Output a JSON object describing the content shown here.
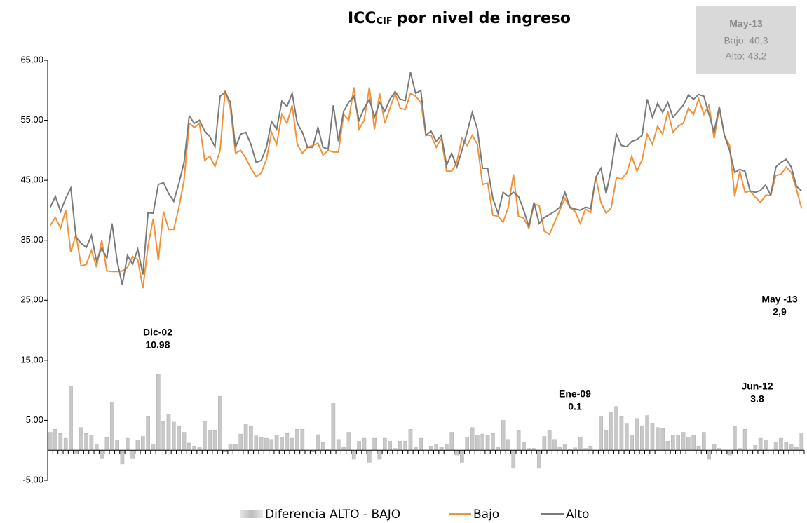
{
  "chart_data": {
    "type": "line",
    "title": "ICC",
    "title_subscript": "CIF",
    "title_rest": "por nivel de ingreso",
    "info_box": [
      "May-13",
      "Bajo: 40,3",
      "Alto: 43,2"
    ],
    "annotations": [
      [
        "Dic-02",
        "10.98"
      ],
      [
        "Ene-09",
        "0.1"
      ],
      [
        "Jun-12",
        "3.8"
      ],
      [
        "May -13",
        "2,9"
      ]
    ],
    "ylim": [
      -5,
      65
    ],
    "yticks": [
      {
        "value": -5,
        "label": "-5,00"
      },
      {
        "value": 5,
        "label": "5,00"
      },
      {
        "value": 15,
        "label": "15,00"
      },
      {
        "value": 25,
        "label": "25,00"
      },
      {
        "value": 35,
        "label": "35,00"
      },
      {
        "value": 45,
        "label": "45,00"
      },
      {
        "value": 55,
        "label": "55,00"
      },
      {
        "value": 65,
        "label": "65,00"
      }
    ],
    "grid": false,
    "legend": "bottom",
    "series": [
      {
        "name": "Diferencia ALTO - BAJO",
        "type": "bar",
        "color": "#c8c8c8",
        "values": [
          3.0,
          3.5,
          2.8,
          2.0,
          10.7,
          -0.5,
          3.8,
          2.8,
          2.5,
          1.0,
          -1.3,
          2.1,
          8.0,
          1.7,
          -2.3,
          2.0,
          -1.3,
          1.7,
          2.3,
          5.6,
          0.9,
          12.6,
          4.8,
          6.0,
          4.7,
          4.0,
          3.0,
          1.2,
          0.7,
          0.5,
          4.9,
          3.3,
          3.3,
          9.0,
          -0.3,
          1.0,
          1.0,
          2.7,
          4.3,
          4.0,
          2.4,
          2.1,
          2.0,
          1.8,
          2.5,
          2.2,
          2.8,
          2.0,
          3.5,
          3.5,
          0,
          -0.3,
          2.6,
          1.3,
          0.2,
          7.8,
          1.8,
          0.5,
          3.0,
          -1.5,
          1.5,
          2.0,
          -2.0,
          2.0,
          -1.5,
          2.0,
          1.5,
          0.3,
          1.5,
          1.5,
          3.5,
          0.5,
          2.0,
          0,
          0.7,
          1.0,
          0.5,
          1.0,
          3.0,
          -0.8,
          -2.0,
          2.2,
          3.8,
          2.5,
          2.7,
          2.5,
          2.8,
          0.5,
          5.0,
          1.8,
          -3.0,
          3.3,
          1.3,
          0.3,
          0.3,
          -3.0,
          2.3,
          3.3,
          1.8,
          0.5,
          1.0,
          0.1,
          0.4,
          2.2,
          0.3,
          0.7,
          -0.1,
          5.7,
          3.3,
          6.4,
          7.3,
          5.6,
          4.4,
          2.5,
          5.3,
          4.1,
          5.8,
          4.5,
          3.8,
          3.6,
          1.5,
          2.5,
          2.5,
          3.0,
          2.2,
          2.5,
          0.7,
          3.0,
          -1.5,
          1.0,
          0.3,
          0,
          -0.8,
          4.0,
          0.3,
          3.5,
          0,
          0.8,
          2.0,
          1.7,
          0,
          1.4,
          2.0,
          1.3,
          0.9,
          0.5,
          2.9
        ]
      },
      {
        "name": "Bajo",
        "type": "line",
        "color": "#f0923a",
        "values": [
          37.5,
          38.8,
          37,
          40,
          33,
          36,
          30.7,
          31,
          33.3,
          30.5,
          35,
          29.9,
          29.8,
          29.8,
          29.9,
          30.5,
          32.3,
          31.8,
          27,
          34,
          38.6,
          31.7,
          39.8,
          36.8,
          36.8,
          40.5,
          45,
          54.5,
          53.8,
          54.5,
          48.3,
          49,
          47.3,
          50,
          60,
          57,
          49.5,
          50,
          48.7,
          47,
          45.6,
          46.2,
          48.5,
          53,
          51,
          56,
          54.5,
          57.5,
          51,
          49.5,
          50.5,
          50.8,
          51.2,
          49.2,
          50,
          49.7,
          49.7,
          56,
          55,
          60.5,
          53.5,
          55,
          60.5,
          53.5,
          59.5,
          54.5,
          57,
          59.5,
          57,
          56.8,
          59.5,
          59,
          58,
          52.5,
          52.5,
          50.5,
          52,
          46.5,
          46.5,
          48,
          52,
          50.8,
          52.5,
          51,
          44.3,
          44.5,
          39.2,
          39,
          38,
          40.5,
          46,
          39,
          38.7,
          37,
          41,
          40.8,
          36.5,
          36,
          38,
          40,
          42,
          40.4,
          39.8,
          37.8,
          40.2,
          39.6,
          45.6,
          41.3,
          39.5,
          40.4,
          45.4,
          45.2,
          46.2,
          49,
          46.5,
          48.4,
          52.7,
          51,
          54,
          52.7,
          56.5,
          53,
          54,
          54.5,
          57,
          56,
          58.6,
          56,
          57.5,
          52,
          57,
          52.5,
          50.8,
          42.3,
          46.5,
          43,
          43.2,
          42.2,
          41.3,
          42.5,
          42.5,
          45.8,
          46,
          47.2,
          46.3,
          43.5,
          40.3
        ]
      },
      {
        "name": "Alto",
        "type": "line",
        "color": "#7a7a7a",
        "values": [
          40.5,
          42.3,
          39.8,
          42,
          43.7,
          35.5,
          34.5,
          33.8,
          35.8,
          31.5,
          33.7,
          32,
          37.8,
          31.5,
          27.6,
          32.5,
          31,
          33.5,
          29.3,
          39.6,
          39.5,
          44.3,
          44.6,
          42.8,
          41.5,
          44.5,
          48,
          55.7,
          54.5,
          55,
          53.2,
          52.3,
          50.6,
          59,
          59.7,
          58,
          50.5,
          52.7,
          53,
          51,
          48,
          48.3,
          50.5,
          54.8,
          53.5,
          58.2,
          57.3,
          59.5,
          54.5,
          53,
          50.5,
          50.5,
          53.8,
          50.5,
          50.2,
          57.5,
          51.5,
          56.5,
          58,
          59,
          55,
          57,
          58.5,
          55.5,
          58,
          56.5,
          58.5,
          59.8,
          58.5,
          58.3,
          63,
          59.5,
          60,
          52.5,
          53.2,
          51.5,
          52.5,
          47.5,
          49.5,
          47.2,
          50,
          53,
          56.3,
          53.5,
          47,
          47,
          42,
          39.5,
          43,
          42.3,
          43,
          42.3,
          40,
          37.3,
          41.3,
          37.8,
          38.8,
          39.3,
          39.8,
          40.5,
          43,
          40.5,
          40.2,
          40,
          40.5,
          40.3,
          45.5,
          47,
          42.8,
          46.8,
          52.7,
          50.8,
          50.6,
          51.5,
          51.8,
          52.5,
          58.5,
          55.5,
          57.8,
          56.3,
          58,
          55.5,
          56.5,
          57.5,
          59.2,
          58.5,
          59.3,
          59,
          56,
          53,
          57.3,
          52.5,
          50,
          46.3,
          46.8,
          46.5,
          43.2,
          43,
          43.3,
          44.2,
          42.5,
          47.2,
          48,
          48.5,
          47.2,
          44,
          43.2
        ]
      }
    ]
  }
}
